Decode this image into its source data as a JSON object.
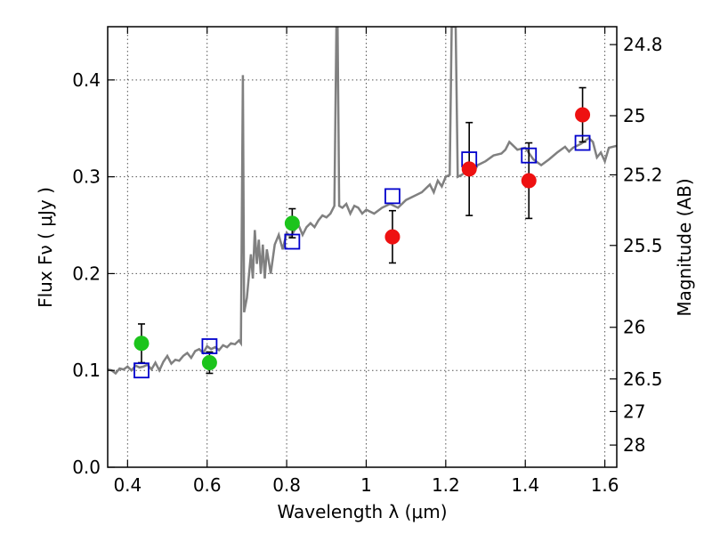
{
  "chart_data": {
    "type": "scatter",
    "xlabel": "Wavelength  λ (μm)",
    "ylabel": "Flux  Fν  ( μJy )",
    "ylabel_right": "Magnitude (AB)",
    "xlim": [
      0.35,
      1.63
    ],
    "ylim": [
      0.0,
      0.455
    ],
    "grid": true,
    "x_ticks": [
      {
        "v": 0.4,
        "label": "0.4"
      },
      {
        "v": 0.6,
        "label": "0.6"
      },
      {
        "v": 0.8,
        "label": "0.8"
      },
      {
        "v": 1.0,
        "label": "1"
      },
      {
        "v": 1.2,
        "label": "1.2"
      },
      {
        "v": 1.4,
        "label": "1.4"
      },
      {
        "v": 1.6,
        "label": "1.6"
      }
    ],
    "y_ticks": [
      {
        "v": 0.0,
        "label": "0.0"
      },
      {
        "v": 0.1,
        "label": "0.1"
      },
      {
        "v": 0.2,
        "label": "0.2"
      },
      {
        "v": 0.3,
        "label": "0.3"
      },
      {
        "v": 0.4,
        "label": "0.4"
      }
    ],
    "mag_ticks": [
      {
        "mag": 24.8,
        "label": "24.8"
      },
      {
        "mag": 25.0,
        "label": "25"
      },
      {
        "mag": 25.2,
        "label": "25.2"
      },
      {
        "mag": 25.5,
        "label": "25.5"
      },
      {
        "mag": 26.0,
        "label": "26"
      },
      {
        "mag": 26.5,
        "label": "26.5"
      },
      {
        "mag": 27.0,
        "label": "27"
      },
      {
        "mag": 28.0,
        "label": "28"
      }
    ],
    "colors": {
      "template": "#808080",
      "optical": "#1cc41c",
      "nir": "#ee1111",
      "model": "#0000cc",
      "error": "#000000",
      "grid": "#555555"
    },
    "series": [
      {
        "name": "optical-photometry",
        "marker": "circle",
        "color": "#1cc41c",
        "points": [
          {
            "x": 0.435,
            "y": 0.128,
            "err": 0.02
          },
          {
            "x": 0.606,
            "y": 0.108,
            "err": 0.011
          },
          {
            "x": 0.814,
            "y": 0.252,
            "err": 0.015
          }
        ]
      },
      {
        "name": "nir-photometry",
        "marker": "circle",
        "color": "#ee1111",
        "points": [
          {
            "x": 1.066,
            "y": 0.238,
            "err": 0.027
          },
          {
            "x": 1.259,
            "y": 0.308,
            "err": 0.048
          },
          {
            "x": 1.409,
            "y": 0.296,
            "err": 0.039
          },
          {
            "x": 1.544,
            "y": 0.364,
            "err": 0.028
          }
        ]
      },
      {
        "name": "model-photometry",
        "marker": "square",
        "color": "#0000cc",
        "points": [
          {
            "x": 0.435,
            "y": 0.1
          },
          {
            "x": 0.606,
            "y": 0.125
          },
          {
            "x": 0.814,
            "y": 0.233
          },
          {
            "x": 1.066,
            "y": 0.28
          },
          {
            "x": 1.259,
            "y": 0.318
          },
          {
            "x": 1.409,
            "y": 0.322
          },
          {
            "x": 1.544,
            "y": 0.335
          }
        ]
      }
    ],
    "template_spectrum": [
      [
        0.35,
        0.101
      ],
      [
        0.36,
        0.1
      ],
      [
        0.37,
        0.097
      ],
      [
        0.38,
        0.102
      ],
      [
        0.39,
        0.101
      ],
      [
        0.4,
        0.104
      ],
      [
        0.41,
        0.1
      ],
      [
        0.42,
        0.105
      ],
      [
        0.43,
        0.103
      ],
      [
        0.44,
        0.104
      ],
      [
        0.45,
        0.106
      ],
      [
        0.46,
        0.101
      ],
      [
        0.47,
        0.108
      ],
      [
        0.48,
        0.1
      ],
      [
        0.49,
        0.109
      ],
      [
        0.5,
        0.115
      ],
      [
        0.51,
        0.107
      ],
      [
        0.52,
        0.111
      ],
      [
        0.53,
        0.11
      ],
      [
        0.54,
        0.115
      ],
      [
        0.55,
        0.118
      ],
      [
        0.56,
        0.113
      ],
      [
        0.57,
        0.12
      ],
      [
        0.58,
        0.122
      ],
      [
        0.59,
        0.118
      ],
      [
        0.6,
        0.125
      ],
      [
        0.61,
        0.122
      ],
      [
        0.62,
        0.124
      ],
      [
        0.63,
        0.121
      ],
      [
        0.64,
        0.126
      ],
      [
        0.65,
        0.124
      ],
      [
        0.66,
        0.128
      ],
      [
        0.67,
        0.127
      ],
      [
        0.68,
        0.131
      ],
      [
        0.685,
        0.128
      ],
      [
        0.69,
        0.405
      ],
      [
        0.693,
        0.16
      ],
      [
        0.7,
        0.175
      ],
      [
        0.71,
        0.22
      ],
      [
        0.715,
        0.195
      ],
      [
        0.72,
        0.245
      ],
      [
        0.725,
        0.21
      ],
      [
        0.73,
        0.235
      ],
      [
        0.735,
        0.2
      ],
      [
        0.74,
        0.23
      ],
      [
        0.745,
        0.195
      ],
      [
        0.75,
        0.225
      ],
      [
        0.76,
        0.2
      ],
      [
        0.77,
        0.23
      ],
      [
        0.78,
        0.24
      ],
      [
        0.79,
        0.225
      ],
      [
        0.8,
        0.242
      ],
      [
        0.81,
        0.238
      ],
      [
        0.82,
        0.245
      ],
      [
        0.83,
        0.25
      ],
      [
        0.84,
        0.24
      ],
      [
        0.85,
        0.248
      ],
      [
        0.86,
        0.252
      ],
      [
        0.87,
        0.248
      ],
      [
        0.88,
        0.255
      ],
      [
        0.89,
        0.26
      ],
      [
        0.9,
        0.258
      ],
      [
        0.91,
        0.262
      ],
      [
        0.92,
        0.27
      ],
      [
        0.925,
        0.455
      ],
      [
        0.928,
        0.455
      ],
      [
        0.932,
        0.27
      ],
      [
        0.94,
        0.268
      ],
      [
        0.95,
        0.272
      ],
      [
        0.96,
        0.262
      ],
      [
        0.97,
        0.27
      ],
      [
        0.98,
        0.268
      ],
      [
        0.99,
        0.262
      ],
      [
        1.0,
        0.266
      ],
      [
        1.02,
        0.262
      ],
      [
        1.04,
        0.268
      ],
      [
        1.06,
        0.272
      ],
      [
        1.08,
        0.268
      ],
      [
        1.1,
        0.276
      ],
      [
        1.12,
        0.28
      ],
      [
        1.14,
        0.284
      ],
      [
        1.16,
        0.292
      ],
      [
        1.17,
        0.284
      ],
      [
        1.18,
        0.296
      ],
      [
        1.19,
        0.29
      ],
      [
        1.2,
        0.3
      ],
      [
        1.21,
        0.302
      ],
      [
        1.215,
        0.455
      ],
      [
        1.225,
        0.455
      ],
      [
        1.23,
        0.3
      ],
      [
        1.24,
        0.302
      ],
      [
        1.25,
        0.305
      ],
      [
        1.26,
        0.31
      ],
      [
        1.27,
        0.304
      ],
      [
        1.28,
        0.312
      ],
      [
        1.3,
        0.316
      ],
      [
        1.32,
        0.322
      ],
      [
        1.34,
        0.324
      ],
      [
        1.35,
        0.328
      ],
      [
        1.36,
        0.336
      ],
      [
        1.37,
        0.332
      ],
      [
        1.38,
        0.328
      ],
      [
        1.4,
        0.33
      ],
      [
        1.42,
        0.318
      ],
      [
        1.44,
        0.312
      ],
      [
        1.46,
        0.318
      ],
      [
        1.48,
        0.325
      ],
      [
        1.5,
        0.331
      ],
      [
        1.51,
        0.326
      ],
      [
        1.52,
        0.33
      ],
      [
        1.54,
        0.334
      ],
      [
        1.56,
        0.34
      ],
      [
        1.57,
        0.336
      ],
      [
        1.58,
        0.32
      ],
      [
        1.59,
        0.325
      ],
      [
        1.6,
        0.316
      ],
      [
        1.61,
        0.33
      ],
      [
        1.63,
        0.332
      ]
    ]
  }
}
